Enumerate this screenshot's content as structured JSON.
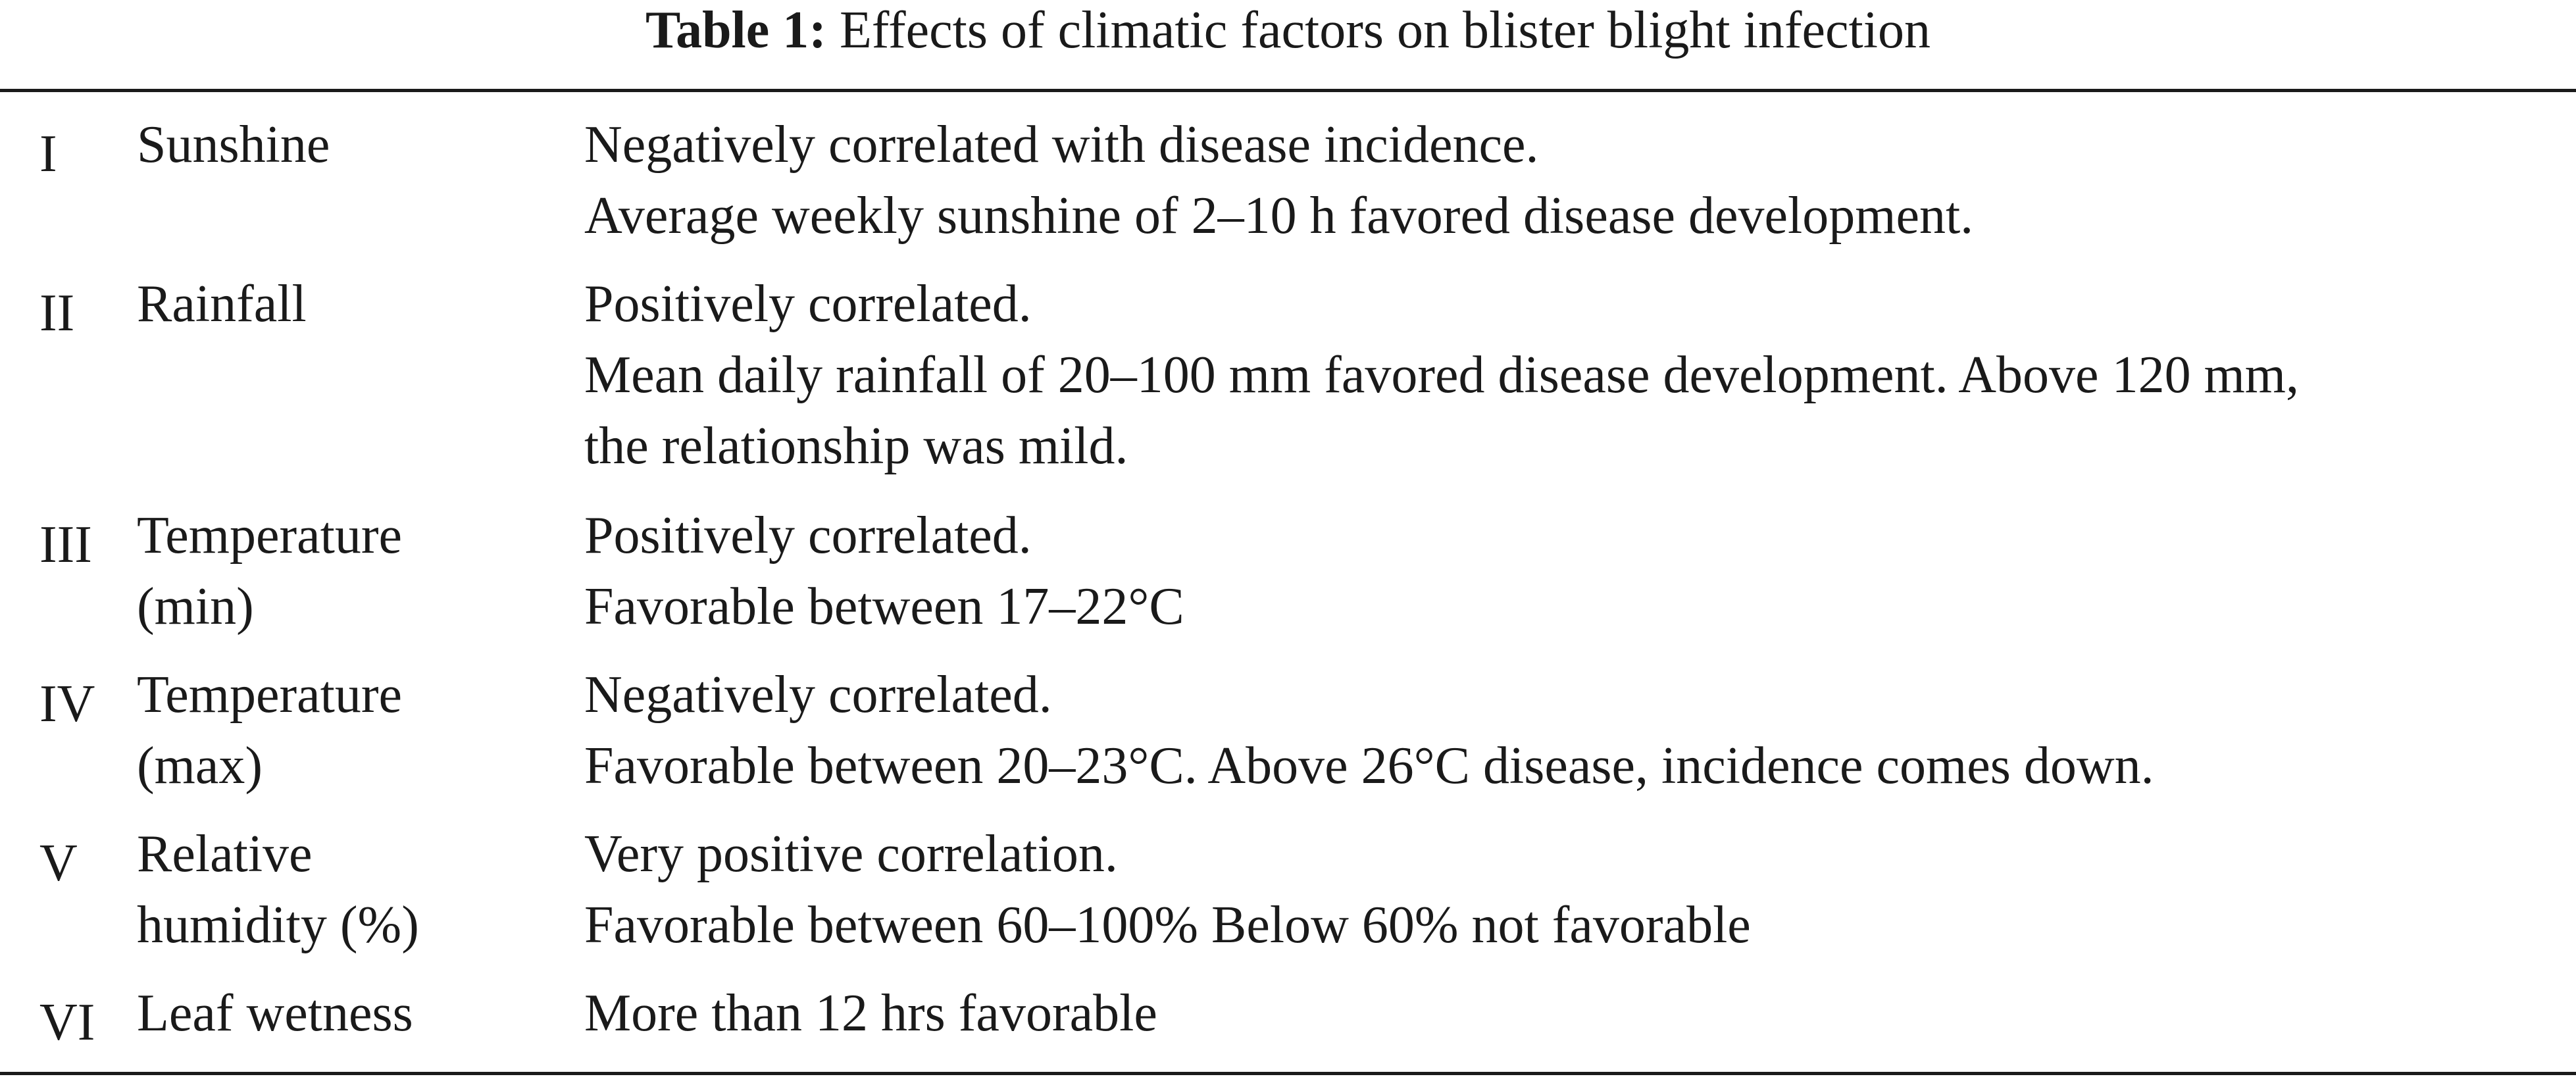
{
  "caption": {
    "label": "Table 1:",
    "title": "Effects of climatic factors on blister blight infection"
  },
  "rows": [
    {
      "num": "I",
      "factor": "Sunshine",
      "description": "Negatively correlated with disease incidence.\nAverage weekly sunshine of 2–10 h favored disease development."
    },
    {
      "num": "II",
      "factor": "Rainfall",
      "description": "Positively correlated.\nMean daily rainfall of 20–100 mm favored disease development. Above 120 mm,\nthe relationship was mild."
    },
    {
      "num": "III",
      "factor": "Temperature\n(min)",
      "description": "Positively correlated.\nFavorable between 17–22°C"
    },
    {
      "num": "IV",
      "factor": "Temperature\n(max)",
      "description": "Negatively correlated.\nFavorable between 20–23°C. Above 26°C disease, incidence comes down."
    },
    {
      "num": "V",
      "factor": "Relative\nhumidity (%)",
      "description": "Very positive correlation.\nFavorable between 60–100% Below 60% not favorable"
    },
    {
      "num": "VI",
      "factor": "Leaf wetness",
      "description": "More than 12 hrs favorable"
    }
  ]
}
